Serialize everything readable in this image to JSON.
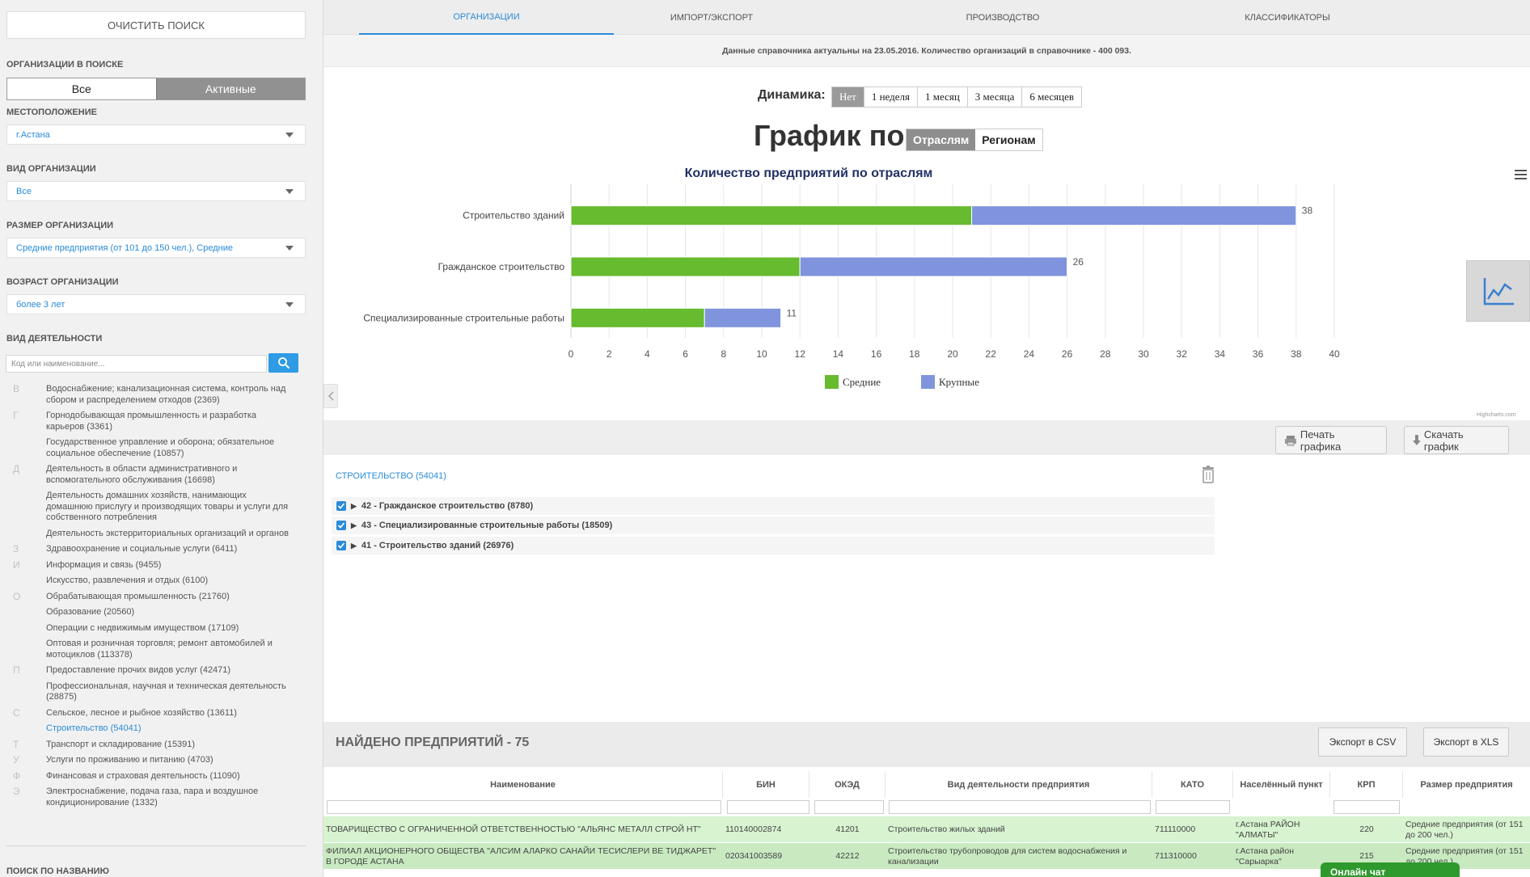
{
  "sidebar": {
    "clear_button": "ОЧИСТИТЬ ПОИСК",
    "orgs_title": "ОРГАНИЗАЦИИ В ПОИСКЕ",
    "orgs_all": "Все",
    "orgs_active": "Активные",
    "location_title": "МЕСТОПОЛОЖЕНИЕ",
    "location_value": "г.Астана",
    "org_type_title": "ВИД ОРГАНИЗАЦИИ",
    "org_type_value": "Все",
    "org_size_title": "РАЗМЕР ОРГАНИЗАЦИИ",
    "org_size_value": "Средние предприятия (от 101 до 150 чел.), Средние",
    "org_age_title": "ВОЗРАСТ ОРГАНИЗАЦИИ",
    "org_age_value": "более 3 лет",
    "activity_title": "ВИД ДЕЯТЕЛЬНОСТИ",
    "activity_placeholder": "Код или наименование...",
    "name_search_title": "ПОИСК ПО НАЗВАНИЮ",
    "activities": [
      {
        "letter": "В",
        "label": "Водоснабжение; канализационная система, контроль над сбором и распределением отходов (2369)"
      },
      {
        "letter": "Г",
        "label": "Горнодобывающая промышленность и разработка карьеров (3361)"
      },
      {
        "letter": "",
        "label": "Государственное управление и оборона; обязательное социальное обеспечение (10857)"
      },
      {
        "letter": "Д",
        "label": "Деятельность в области административного и вспомогательного обслуживания (16698)"
      },
      {
        "letter": "",
        "label": "Деятельность домашних хозяйств, нанимающих домашнюю прислугу и производящих товары и услуги для собственного потребления"
      },
      {
        "letter": "",
        "label": "Деятельность экстерриториальных организаций и органов"
      },
      {
        "letter": "З",
        "label": "Здравоохранение и социальные услуги (6411)"
      },
      {
        "letter": "И",
        "label": "Информация и связь (9455)"
      },
      {
        "letter": "",
        "label": "Искусство, развлечения и отдых (6100)"
      },
      {
        "letter": "О",
        "label": "Обрабатывающая промышленность (21760)"
      },
      {
        "letter": "",
        "label": "Образование (20560)"
      },
      {
        "letter": "",
        "label": "Операции с недвижимым имуществом (17109)"
      },
      {
        "letter": "",
        "label": "Оптовая и розничная торговля; ремонт автомобилей и мотоциклов (113378)"
      },
      {
        "letter": "П",
        "label": "Предоставление прочих видов услуг (42471)"
      },
      {
        "letter": "",
        "label": "Профессиональная, научная и техническая деятельность (28875)"
      },
      {
        "letter": "С",
        "label": "Сельское, лесное и рыбное хозяйство (13611)"
      },
      {
        "letter": "",
        "label": "Строительство (54041)",
        "selected": true
      },
      {
        "letter": "Т",
        "label": "Транспорт и складирование (15391)"
      },
      {
        "letter": "У",
        "label": "Услуги по проживанию и питанию (4703)"
      },
      {
        "letter": "Ф",
        "label": "Финансовая и страховая деятельность (11090)"
      },
      {
        "letter": "Э",
        "label": "Электроснабжение, подача газа, пара и воздушное кондиционирование (1332)"
      }
    ]
  },
  "tabs": [
    "ОРГАНИЗАЦИИ",
    "ИМПОРТ/ЭКСПОРТ",
    "ПРОИЗВОДСТВО",
    "КЛАССИФИКАТОРЫ"
  ],
  "info_text": "Данные справочника актуальны на 23.05.2016. Количество организаций в справочнике - 400 093.",
  "dynamics": {
    "label": "Динамика:",
    "options": [
      "Нет",
      "1 неделя",
      "1 месяц",
      "3 месяца",
      "6 месяцев"
    ]
  },
  "graph_by": {
    "label": "График по",
    "options": [
      "Отраслям",
      "Регионам"
    ]
  },
  "chart_data": {
    "type": "bar",
    "orientation": "horizontal",
    "stacked": true,
    "title": "Количество предприятий по отраслям",
    "categories": [
      "Строительство зданий",
      "Гражданское строительство",
      "Специализированные строительные работы"
    ],
    "series": [
      {
        "name": "Средние",
        "color": "#66bb2e",
        "values": [
          21,
          12,
          7
        ]
      },
      {
        "name": "Крупные",
        "color": "#8093dd",
        "values": [
          17,
          14,
          4
        ]
      }
    ],
    "totals": [
      38,
      26,
      11
    ],
    "xlim": [
      0,
      40
    ],
    "xticks": [
      0,
      2,
      4,
      6,
      8,
      10,
      12,
      14,
      16,
      18,
      20,
      22,
      24,
      26,
      28,
      30,
      32,
      34,
      36,
      38,
      40
    ],
    "grid": true,
    "legend": "bottom-center",
    "credits": "Highcharts.com"
  },
  "print_buttons": {
    "print": "Печать графика",
    "download": "Скачать график"
  },
  "selected_filters": {
    "heading": "СТРОИТЕЛЬСТВО (54041)",
    "items": [
      "42 - Гражданское строительство (8780)",
      "43 - Специализированные строительные работы (18509)",
      "41 - Строительство зданий (26976)"
    ]
  },
  "results": {
    "title": "НАЙДЕНО ПРЕДПРИЯТИЙ - 75",
    "export_csv": "Экспорт в CSV",
    "export_xls": "Экспорт в XLS",
    "columns": [
      "Наименование",
      "БИН",
      "ОКЭД",
      "Вид деятельности предприятия",
      "КАТО",
      "Населённый пункт",
      "КРП",
      "Размер предприятия"
    ],
    "rows": [
      [
        "ТОВАРИЩЕСТВО С ОГРАНИЧЕННОЙ ОТВЕТСТВЕННОСТЬЮ \"АЛЬЯНС МЕТАЛЛ СТРОЙ НТ\"",
        "110140002874",
        "41201",
        "Строительство жилых зданий",
        "711110000",
        "г.Астана РАЙОН \"АЛМАТЫ\"",
        "220",
        "Средние предприятия (от 151 до 200 чел.)"
      ],
      [
        "ФИЛИАЛ АКЦИОНЕРНОГО ОБЩЕСТВА \"АЛСИМ АЛАРКО САНАЙИ ТЕСИСЛЕРИ ВЕ ТИДЖАРЕТ\" В ГОРОДЕ АСТАНА",
        "020341003589",
        "42212",
        "Строительство трубопроводов для систем водоснабжения и канализации",
        "711310000",
        "г.Астана район \"Сарыарка\"",
        "215",
        "Средние предприятия (от 151 до 200 чел.)"
      ]
    ]
  },
  "chat_label": "Онлайн чат"
}
